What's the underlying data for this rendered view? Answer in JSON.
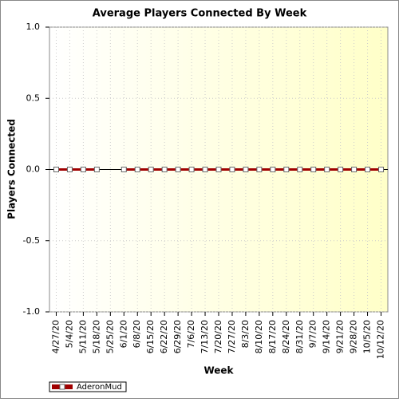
{
  "chart_data": {
    "type": "line",
    "title": "Average Players Connected By Week",
    "x_label": "Week",
    "y_label": "Players Connected",
    "categories": [
      "4/27/20",
      "5/4/20",
      "5/11/20",
      "5/18/20",
      "5/25/20",
      "6/1/20",
      "6/8/20",
      "6/15/20",
      "6/22/20",
      "6/29/20",
      "7/6/20",
      "7/13/20",
      "7/20/20",
      "7/27/20",
      "8/3/20",
      "8/10/20",
      "8/17/20",
      "8/24/20",
      "8/31/20",
      "9/7/20",
      "9/14/20",
      "9/21/20",
      "9/28/20",
      "10/5/20",
      "10/12/20"
    ],
    "series": [
      {
        "name": "AderonMud",
        "color": "#a00000",
        "values": [
          0,
          0,
          0,
          0,
          null,
          0,
          0,
          0,
          0,
          0,
          0,
          0,
          0,
          0,
          0,
          0,
          0,
          0,
          0,
          0,
          0,
          0,
          0,
          0,
          0
        ]
      }
    ],
    "ylim": [
      -1,
      1
    ],
    "yticks": [
      {
        "value": -1,
        "label": "-1.0"
      },
      -0.5,
      {
        "value": 0,
        "label": "0.0"
      },
      0.5,
      {
        "value": 1,
        "label": "1.0"
      }
    ],
    "grid": true,
    "legend": "bottom-left"
  }
}
